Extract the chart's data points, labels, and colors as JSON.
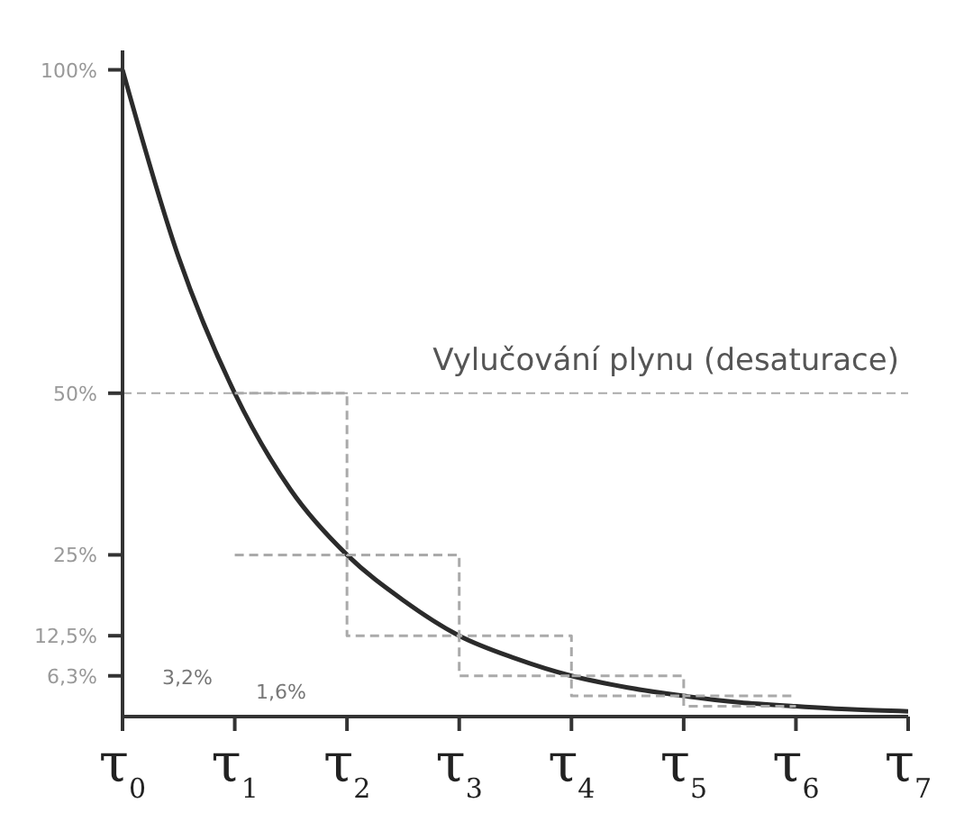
{
  "chart_data": {
    "type": "line",
    "xlim": [
      0,
      7
    ],
    "xticks": [
      {
        "value": 0,
        "label": "τ$_{0}$"
      },
      {
        "value": 1,
        "label": "τ$_{1}$"
      },
      {
        "value": 2,
        "label": "τ$_{2}$"
      },
      {
        "value": 3,
        "label": "τ$_{3}$"
      },
      {
        "value": 4,
        "label": "τ$_{4}$"
      },
      {
        "value": 5,
        "label": "τ$_{5}$"
      },
      {
        "value": 6,
        "label": "τ$_{6}$"
      },
      {
        "value": 7,
        "label": "τ$_{7}$"
      }
    ],
    "ylim": [
      0,
      103
    ],
    "yticks": [
      {
        "value": 100,
        "label": "100%"
      },
      {
        "value": 50,
        "label": "50%"
      },
      {
        "value": 25,
        "label": "25%"
      },
      {
        "value": 12.5,
        "label": "12,5%"
      },
      {
        "value": 6.3,
        "label": "6,3%"
      }
    ],
    "grid": false,
    "legend": false,
    "marker": "none",
    "series": [
      {
        "color": "#2b2b2b",
        "line_style": "solid",
        "x": [
          0,
          0.5,
          1,
          1.5,
          2,
          2.5,
          3,
          3.5,
          4,
          4.5,
          5,
          5.5,
          6,
          6.5,
          7
        ],
        "values": [
          100,
          71,
          50,
          35,
          25,
          18,
          12.5,
          9,
          6.3,
          4.5,
          3.2,
          2.2,
          1.6,
          1.1,
          0.8
        ]
      },
      {
        "type": "step",
        "color": "#aaaaaa",
        "line_style": "dashed",
        "x": [
          1,
          2,
          3,
          4,
          5,
          6
        ],
        "values": [
          50,
          25,
          12.5,
          6.3,
          3.2,
          3.2
        ]
      },
      {
        "type": "step",
        "color": "#aaaaaa",
        "line_style": "dashed",
        "x": [
          1,
          2,
          3,
          4,
          5,
          6
        ],
        "values": [
          25,
          12.5,
          6.3,
          3.2,
          1.6,
          1.6
        ]
      }
    ],
    "ref_lines": [
      {
        "axis": "y",
        "value": 50,
        "label": "Vylučování plynu (desaturace)",
        "color": "#aaaaaa",
        "line_style": "dashed"
      }
    ],
    "annotations": [
      "3,2%",
      "1,6%"
    ]
  }
}
